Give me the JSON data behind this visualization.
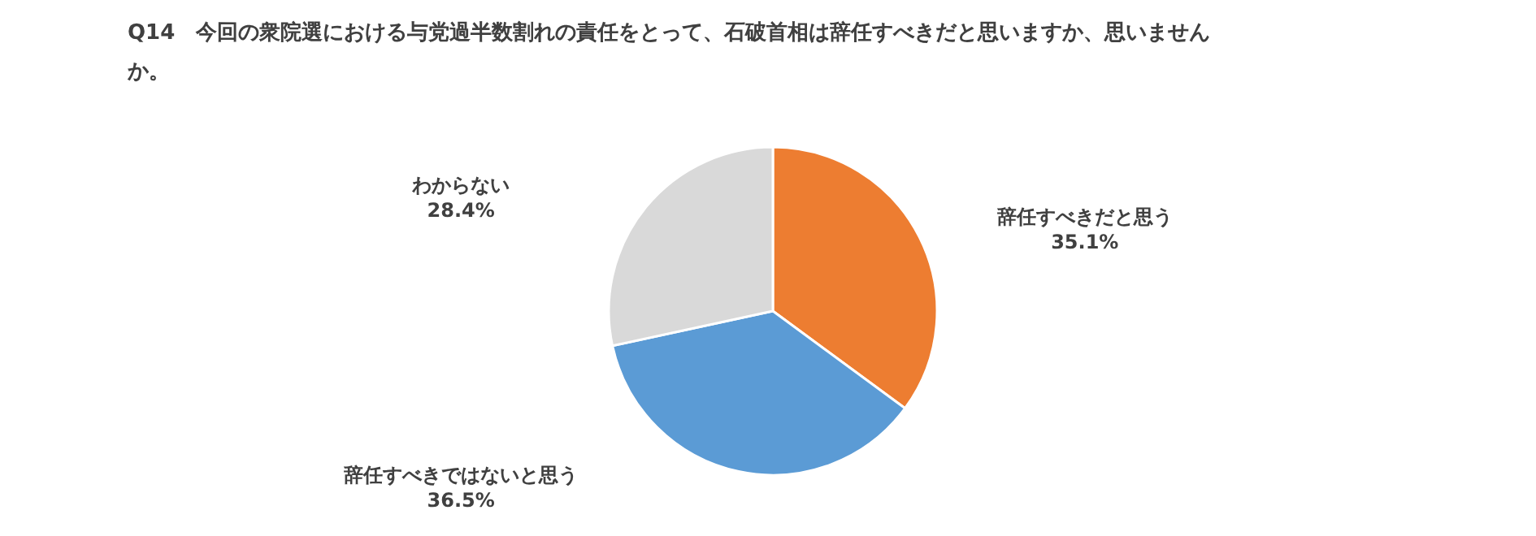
{
  "chart_data": {
    "type": "pie",
    "title": "Q14　今回の衆院選における与党過半数割れの責任をとって、石破首相は辞任すべきだと思いますか、思いませんか。",
    "categories": [
      "辞任すべきだと思う",
      "辞任すべきではないと思う",
      "わからない"
    ],
    "values": [
      35.1,
      36.5,
      28.4
    ],
    "colors": [
      "#ed7d31",
      "#5b9bd5",
      "#d9d9d9"
    ],
    "value_labels": [
      "35.1%",
      "36.5%",
      "28.4%"
    ]
  }
}
